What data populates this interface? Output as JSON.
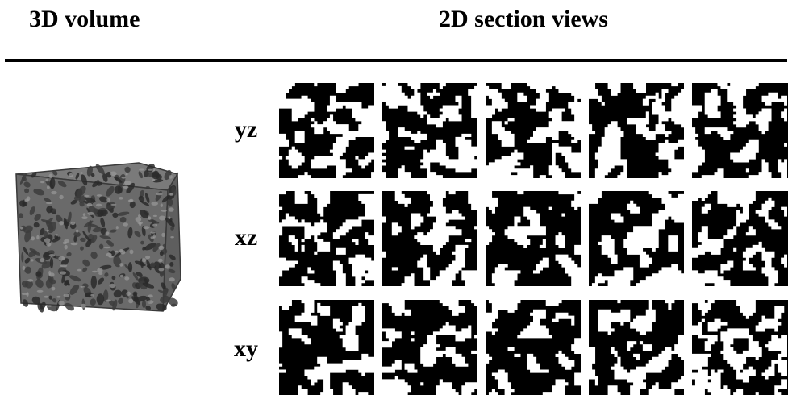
{
  "headers": {
    "left": "3D volume",
    "right": "2D section views"
  },
  "planes": [
    {
      "label": "yz"
    },
    {
      "label": "xz"
    },
    {
      "label": "xy"
    }
  ],
  "sections_per_plane": 5,
  "colors": {
    "phase_solid": "#000000",
    "phase_pore": "#ffffff",
    "volume_fill": "#707070",
    "volume_edge": "#2a2a2a",
    "rule": "#000000"
  }
}
